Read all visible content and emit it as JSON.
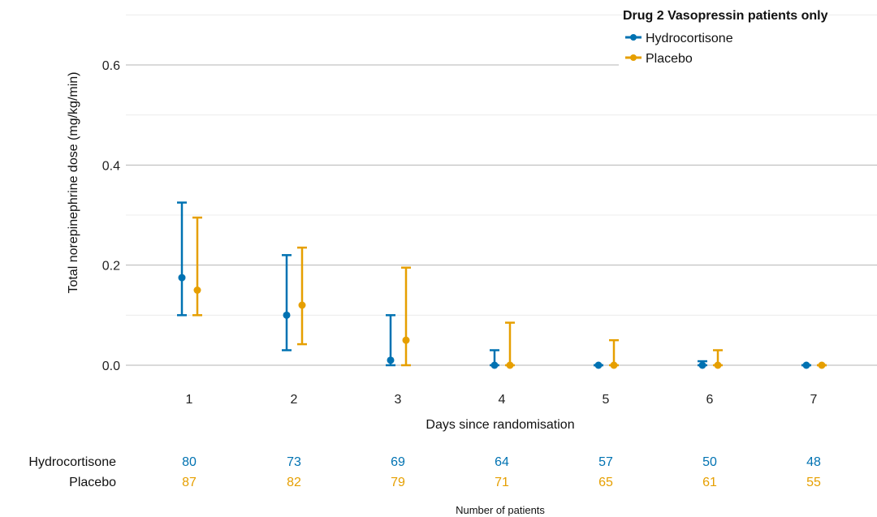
{
  "chart_data": {
    "type": "scatter",
    "subtype": "point-range",
    "legend": {
      "title": "Drug 2 Vasopressin patients only",
      "placement": "top-right",
      "entries": [
        "Hydrocortisone",
        "Placebo"
      ]
    },
    "xlabel": "Days since randomisation",
    "ylabel": "Total norepinephrine dose (mg/kg/min)",
    "ylim": [
      -0.04,
      0.7
    ],
    "yticks": [
      0.0,
      0.2,
      0.4,
      0.6
    ],
    "ytick_labels": [
      "0.0",
      "0.2",
      "0.4",
      "0.6"
    ],
    "grid": "horizontal",
    "categories": [
      "1",
      "2",
      "3",
      "4",
      "5",
      "6",
      "7"
    ],
    "series": [
      {
        "name": "Hydrocortisone",
        "color": "#0072B2",
        "median": [
          0.175,
          0.1,
          0.01,
          0.0,
          0.0,
          0.0,
          0.0
        ],
        "lower": [
          0.1,
          0.03,
          0.0,
          0.0,
          0.0,
          0.0,
          0.0
        ],
        "upper": [
          0.325,
          0.22,
          0.1,
          0.03,
          0.0,
          0.008,
          0.0
        ]
      },
      {
        "name": "Placebo",
        "color": "#E69F00",
        "median": [
          0.15,
          0.12,
          0.05,
          0.0,
          0.0,
          0.0,
          0.0
        ],
        "lower": [
          0.1,
          0.042,
          0.0,
          0.0,
          0.0,
          0.0,
          0.0
        ],
        "upper": [
          0.295,
          0.235,
          0.195,
          0.085,
          0.05,
          0.03,
          0.0
        ]
      }
    ],
    "risk_table": {
      "title": "Number of patients",
      "rows": [
        {
          "label": "Hydrocortisone",
          "values": [
            "80",
            "73",
            "69",
            "64",
            "57",
            "50",
            "48"
          ]
        },
        {
          "label": "Placebo",
          "values": [
            "87",
            "82",
            "79",
            "71",
            "65",
            "61",
            "55"
          ]
        }
      ]
    }
  }
}
